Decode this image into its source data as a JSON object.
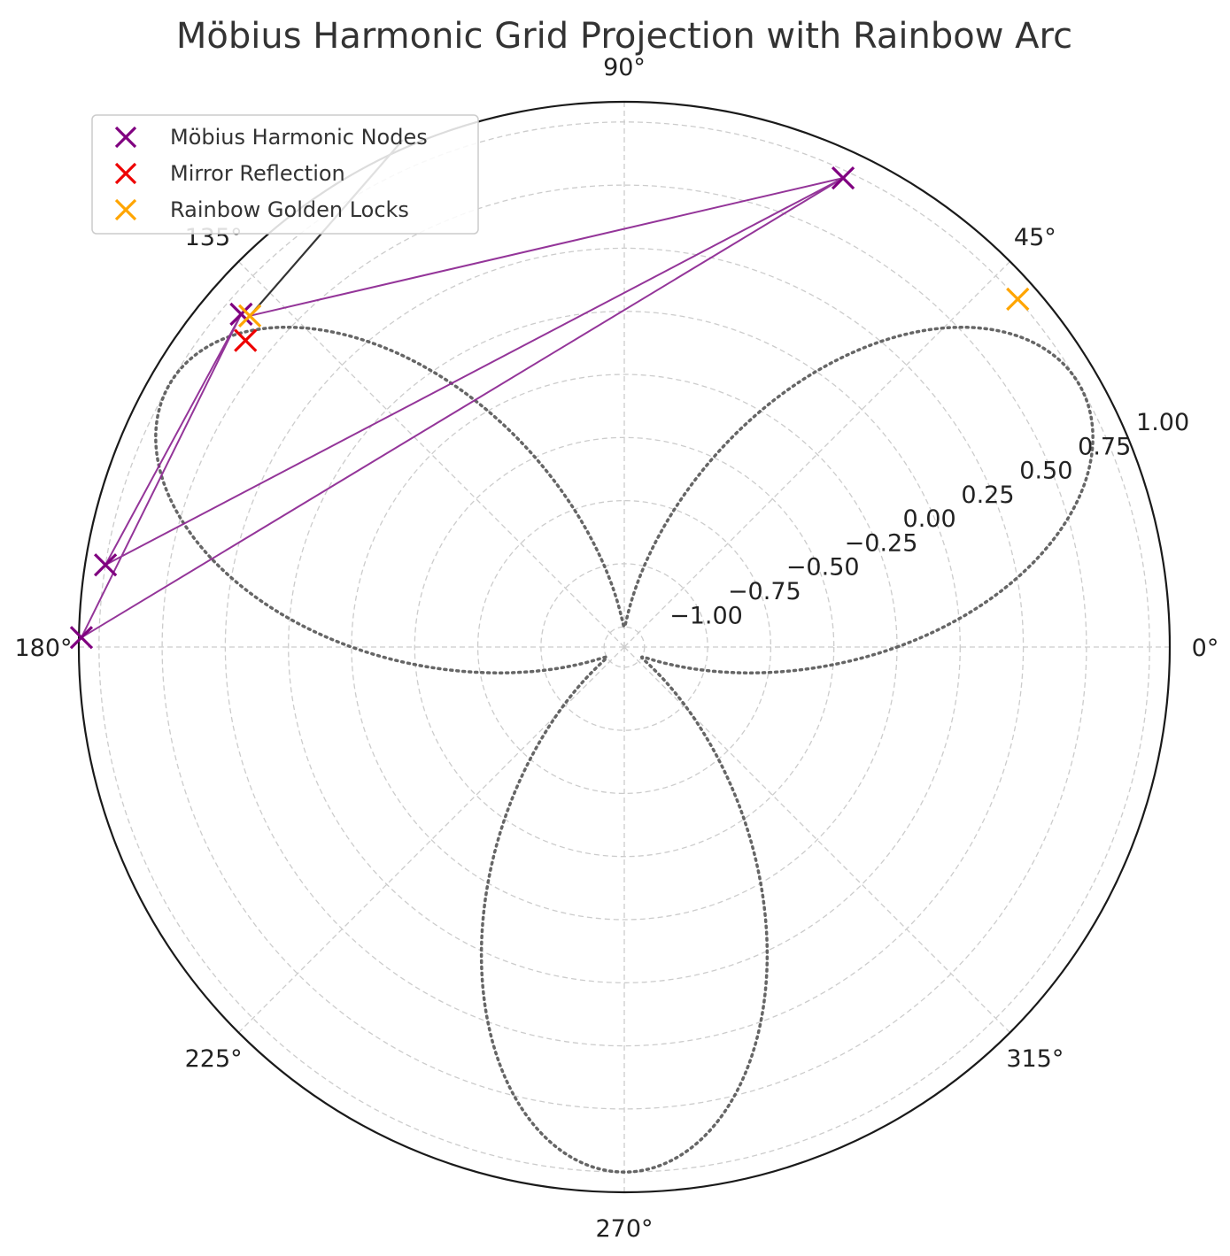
{
  "chart_data": {
    "type": "scatter",
    "projection": "polar",
    "title": "Möbius Harmonic Grid Projection with Rainbow Arc",
    "rlim": [
      -1.08,
      1.08
    ],
    "radial_ticks": [
      -1.0,
      -0.75,
      -0.5,
      -0.25,
      0.0,
      0.25,
      0.5,
      0.75,
      1.0
    ],
    "radial_tick_labels": [
      "−1.00",
      "−0.75",
      "−0.50",
      "−0.25",
      "0.00",
      "0.25",
      "0.50",
      "0.75",
      "1.00"
    ],
    "radial_label_angle_deg": 22.5,
    "angle_ticks_deg": [
      0,
      45,
      90,
      135,
      180,
      225,
      270,
      315
    ],
    "angle_tick_labels": [
      "0°",
      "45°",
      "90°",
      "135°",
      "180°",
      "225°",
      "270°",
      "315°"
    ],
    "grid": true,
    "legend_position": "upper-left",
    "curve": {
      "description_equation": "r = sin(3θ)",
      "color": "#555555",
      "style": "dotted",
      "amplitude": 1.0,
      "frequency": 3
    },
    "series": [
      {
        "name": "Möbius Harmonic Nodes",
        "marker": "x",
        "color": "#800080",
        "points": [
          {
            "theta_deg": 65.0,
            "r": 0.97
          },
          {
            "theta_deg": 139.0,
            "r": 0.93
          },
          {
            "theta_deg": 171.0,
            "r": 1.0
          },
          {
            "theta_deg": 179.0,
            "r": 1.07
          }
        ]
      },
      {
        "name": "Mirror Reflection",
        "marker": "x",
        "color": "#ee0000",
        "points": [
          {
            "theta_deg": 141.0,
            "r": 0.85
          }
        ]
      },
      {
        "name": "Rainbow Golden Locks",
        "marker": "x",
        "color": "#ffa500",
        "points": [
          {
            "theta_deg": 41.5,
            "r": 1.0
          },
          {
            "theta_deg": 138.5,
            "r": 0.9
          }
        ]
      }
    ],
    "connecting_path": {
      "color": "#8e2a94",
      "order_theta_deg_r": [
        [
          138.5,
          0.9
        ],
        [
          65.0,
          0.97
        ],
        [
          171.0,
          1.0
        ],
        [
          139.0,
          0.93
        ],
        [
          179.0,
          1.07
        ],
        [
          65.0,
          0.97
        ]
      ]
    }
  }
}
